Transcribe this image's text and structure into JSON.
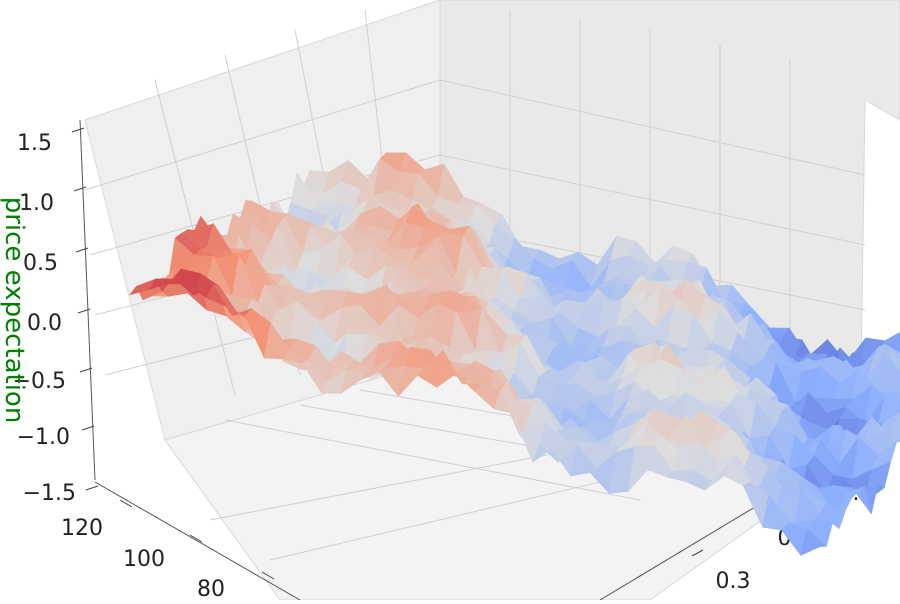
{
  "chart_data": {
    "type": "surface",
    "title": "",
    "xlabel": "",
    "ylabel": "",
    "zlabel": "price expectation",
    "zlabel_color": "#008000",
    "x_ticks": [
      "80",
      "100",
      "120"
    ],
    "y_ticks": [
      "0.3",
      "0.4",
      "0.5"
    ],
    "z_ticks": [
      "−1.5",
      "−1.0",
      "−0.5",
      "0.0",
      "0.5",
      "1.0",
      "1.5"
    ],
    "zlim": [
      -1.5,
      1.5
    ],
    "colormap": "coolwarm",
    "colormap_stops": [
      "#3b4cc0",
      "#8db0fe",
      "#dddddd",
      "#f4987a",
      "#b40426"
    ],
    "pane_color": "#f0f0f0",
    "grid": true
  }
}
